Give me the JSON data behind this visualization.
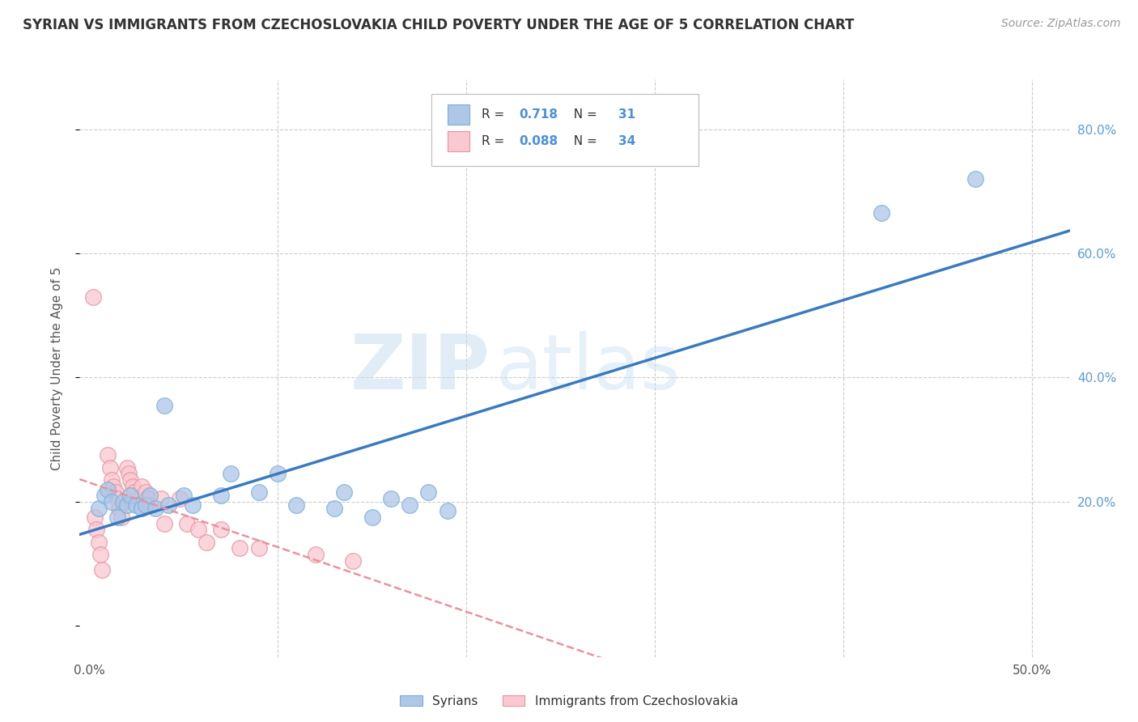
{
  "title": "SYRIAN VS IMMIGRANTS FROM CZECHOSLOVAKIA CHILD POVERTY UNDER THE AGE OF 5 CORRELATION CHART",
  "source": "Source: ZipAtlas.com",
  "ylabel": "Child Poverty Under the Age of 5",
  "xlim": [
    -0.005,
    0.52
  ],
  "ylim": [
    -0.05,
    0.88
  ],
  "background_color": "#ffffff",
  "grid_color": "#cccccc",
  "syrians_color": "#aec6e8",
  "syrians_edge_color": "#7bafd4",
  "czechoslovakia_color": "#f9c8d0",
  "czechoslovakia_edge_color": "#e8929e",
  "syrians_line_color": "#3a7abf",
  "czechoslovakia_line_color": "#e8929e",
  "syrians_x": [
    0.005,
    0.008,
    0.01,
    0.012,
    0.015,
    0.018,
    0.02,
    0.022,
    0.025,
    0.028,
    0.03,
    0.032,
    0.035,
    0.04,
    0.042,
    0.05,
    0.055,
    0.07,
    0.075,
    0.09,
    0.1,
    0.11,
    0.13,
    0.135,
    0.15,
    0.16,
    0.17,
    0.18,
    0.19,
    0.42,
    0.47
  ],
  "syrians_y": [
    0.19,
    0.21,
    0.22,
    0.2,
    0.175,
    0.2,
    0.195,
    0.21,
    0.195,
    0.19,
    0.195,
    0.21,
    0.19,
    0.355,
    0.195,
    0.21,
    0.195,
    0.21,
    0.245,
    0.215,
    0.245,
    0.195,
    0.19,
    0.215,
    0.175,
    0.205,
    0.195,
    0.215,
    0.185,
    0.665,
    0.72
  ],
  "czechoslovakia_x": [
    0.002,
    0.003,
    0.004,
    0.005,
    0.006,
    0.007,
    0.01,
    0.011,
    0.012,
    0.013,
    0.014,
    0.015,
    0.016,
    0.017,
    0.02,
    0.021,
    0.022,
    0.023,
    0.024,
    0.028,
    0.03,
    0.031,
    0.032,
    0.038,
    0.04,
    0.048,
    0.052,
    0.058,
    0.062,
    0.07,
    0.08,
    0.09,
    0.12,
    0.14
  ],
  "czechoslovakia_y": [
    0.53,
    0.175,
    0.155,
    0.135,
    0.115,
    0.09,
    0.275,
    0.255,
    0.235,
    0.225,
    0.215,
    0.205,
    0.19,
    0.175,
    0.255,
    0.245,
    0.235,
    0.225,
    0.215,
    0.225,
    0.215,
    0.205,
    0.195,
    0.205,
    0.165,
    0.205,
    0.165,
    0.155,
    0.135,
    0.155,
    0.125,
    0.125,
    0.115,
    0.105
  ],
  "syrians_R": 0.718,
  "syrians_N": 31,
  "czechoslovakia_R": 0.088,
  "czechoslovakia_N": 34,
  "legend_labels": [
    "Syrians",
    "Immigrants from Czechoslovakia"
  ],
  "title_fontsize": 12,
  "label_fontsize": 11,
  "tick_fontsize": 11,
  "source_fontsize": 10
}
